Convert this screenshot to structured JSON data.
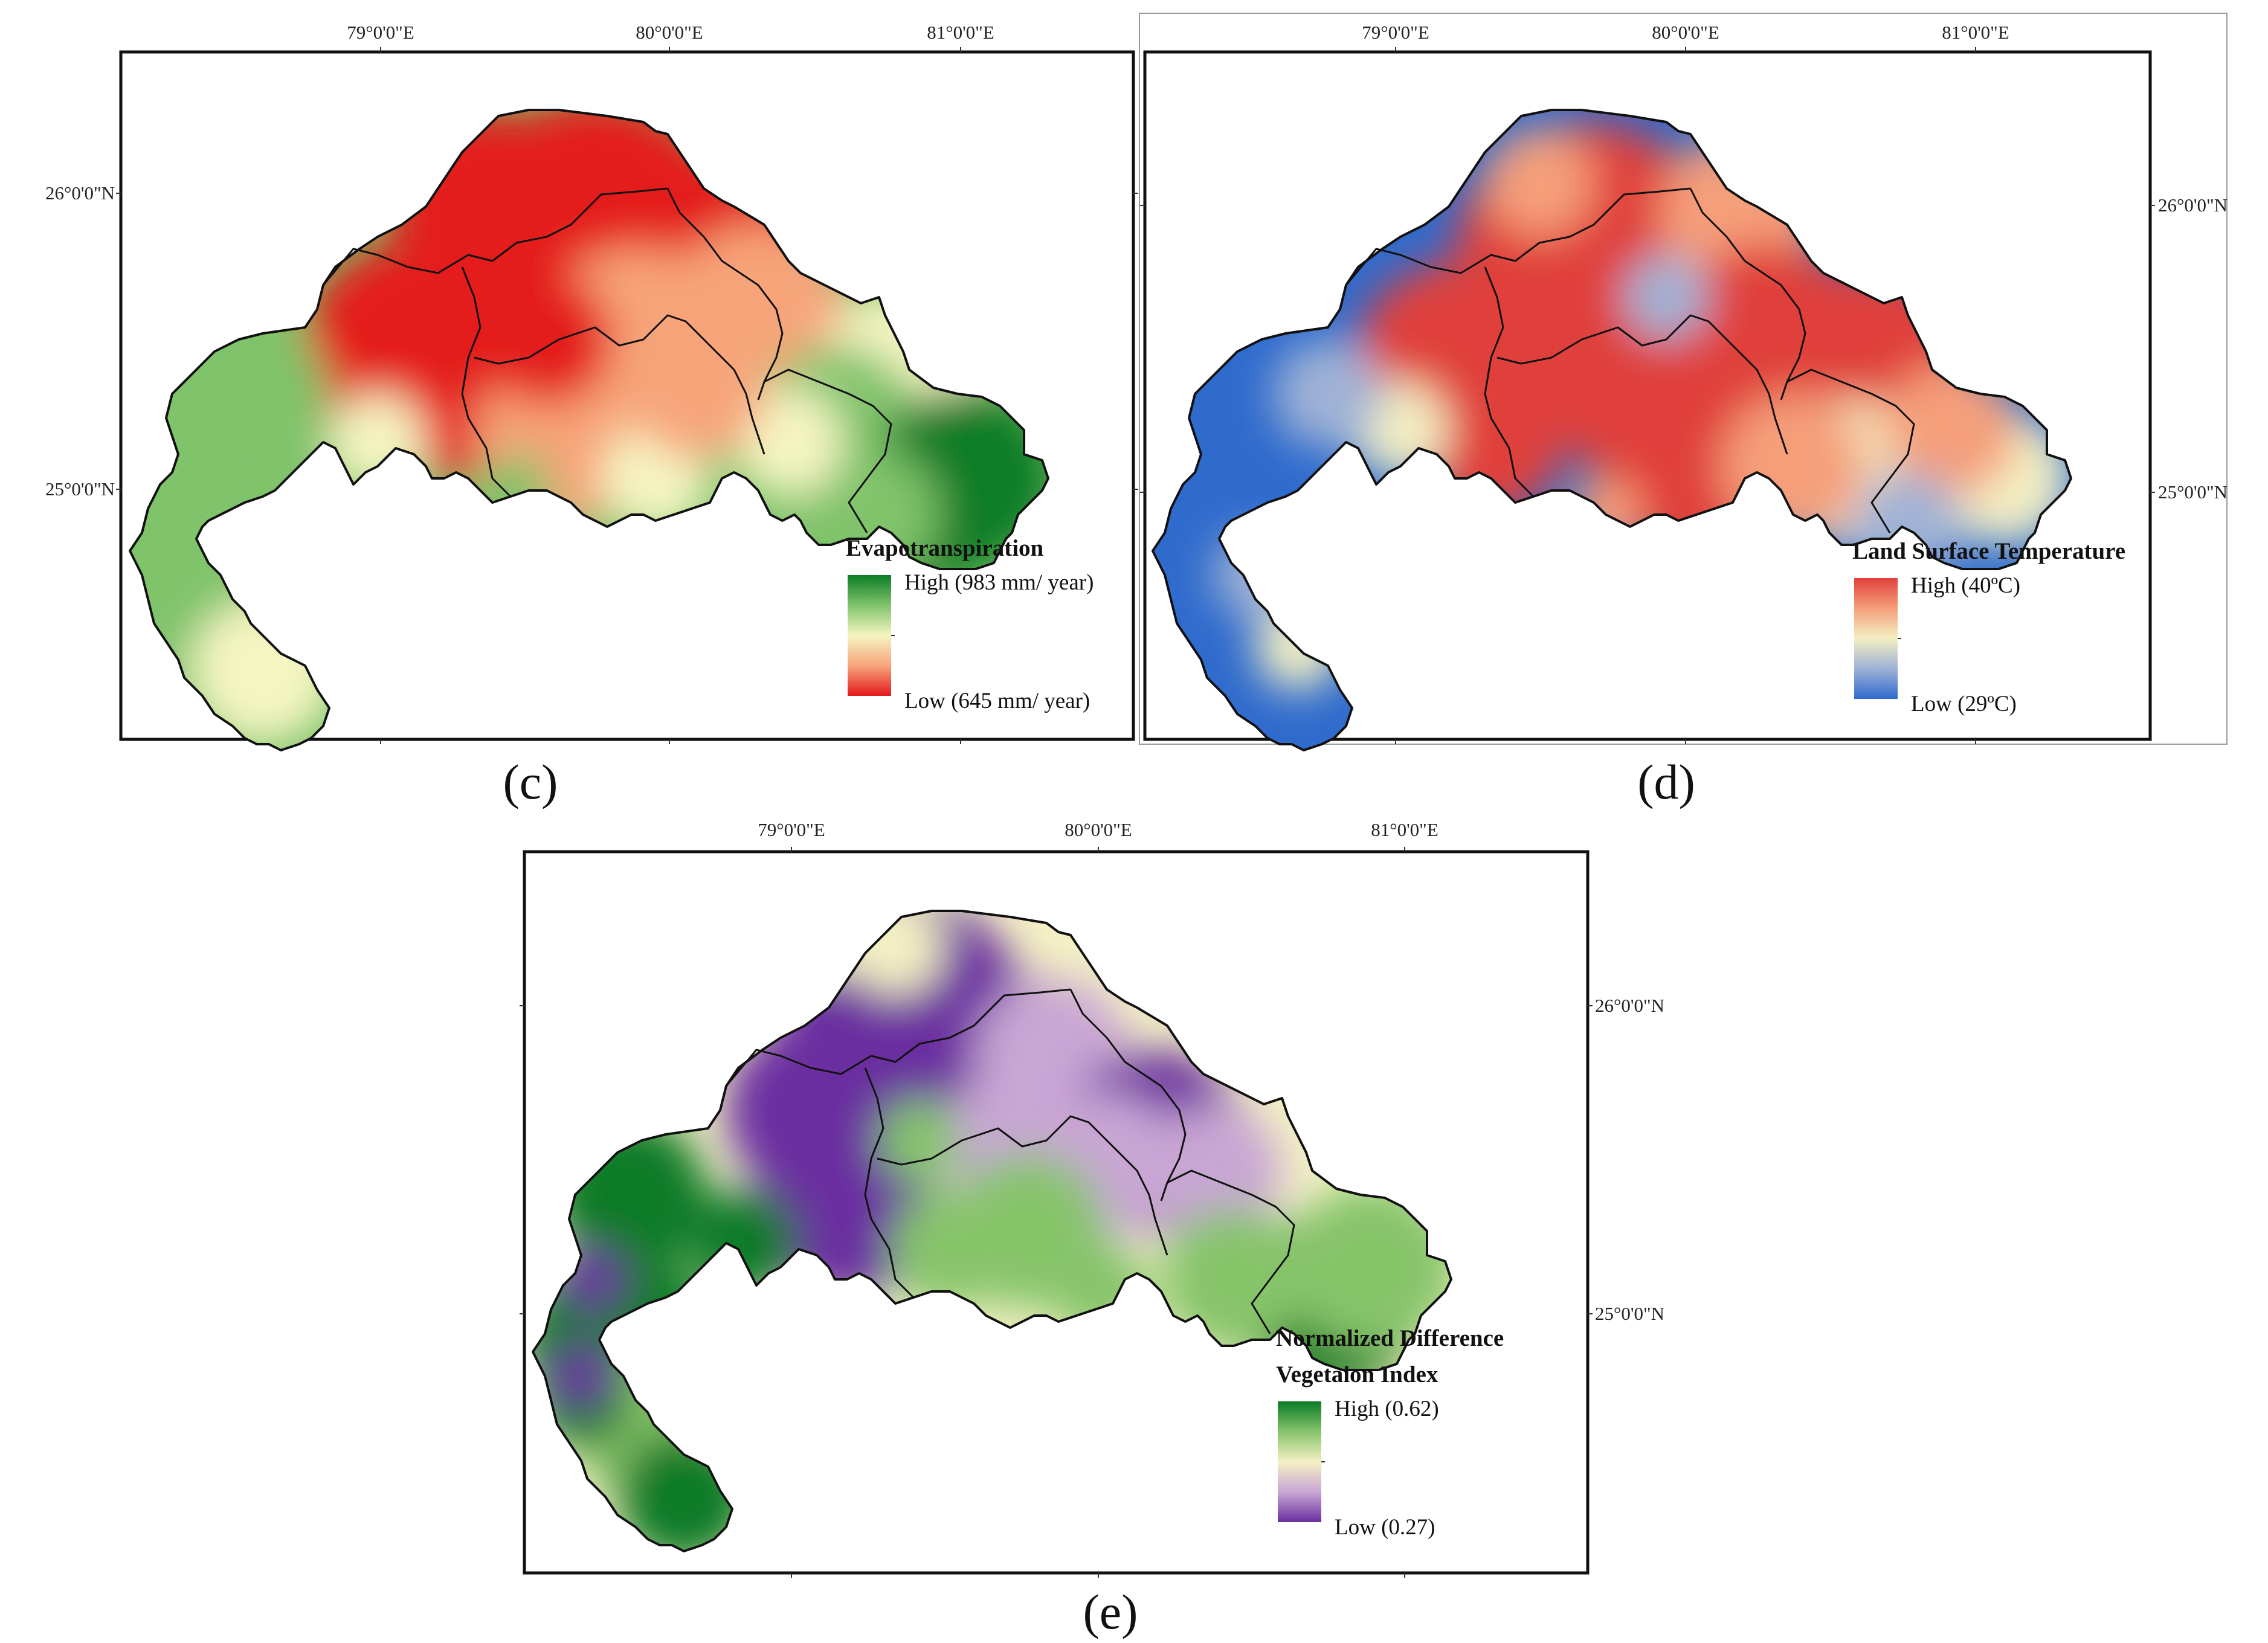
{
  "figure": {
    "panels": [
      {
        "id": "c",
        "letter": "(c)",
        "palette": "et",
        "lon_labels": [
          "79°0'0\"E",
          "80°0'0\"E",
          "81°0'0\"E"
        ],
        "lat_labels": [
          "26°0'0\"N",
          "25°0'0\"N"
        ],
        "legend": {
          "title_lines": [
            "Evapotranspiration"
          ],
          "high": "High (983 mm/ year)",
          "low": "Low (645 mm/ year)",
          "colors": [
            "#0b7d26",
            "#7fc36a",
            "#f5f5c2",
            "#f7a47a",
            "#e41a1c"
          ]
        }
      },
      {
        "id": "d",
        "letter": "(d)",
        "palette": "lst",
        "lon_labels": [
          "79°0'0\"E",
          "80°0'0\"E",
          "81°0'0\"E"
        ],
        "lat_labels": [
          "26°0'0\"N",
          "25°0'0\"N"
        ],
        "legend": {
          "title_lines": [
            "Land Surface Temperature"
          ],
          "high": "High (40ºC)",
          "low": "Low (29ºC)",
          "colors": [
            "#e0413b",
            "#f59f7a",
            "#f3efc3",
            "#9fb2d6",
            "#2f6bcd"
          ]
        }
      },
      {
        "id": "e",
        "letter": "(e)",
        "palette": "ndvi",
        "lon_labels": [
          "79°0'0\"E",
          "80°0'0\"E",
          "81°0'0\"E"
        ],
        "lat_labels": [
          "26°0'0\"N",
          "25°0'0\"N"
        ],
        "legend": {
          "title_lines": [
            "Normalized Difference",
            "Vegetaion Index"
          ],
          "high": "High (0.62)",
          "low": "Low (0.27)",
          "colors": [
            "#0a7a27",
            "#86c46b",
            "#f4f1c4",
            "#c9a6d4",
            "#6a2ea0"
          ]
        }
      }
    ]
  }
}
